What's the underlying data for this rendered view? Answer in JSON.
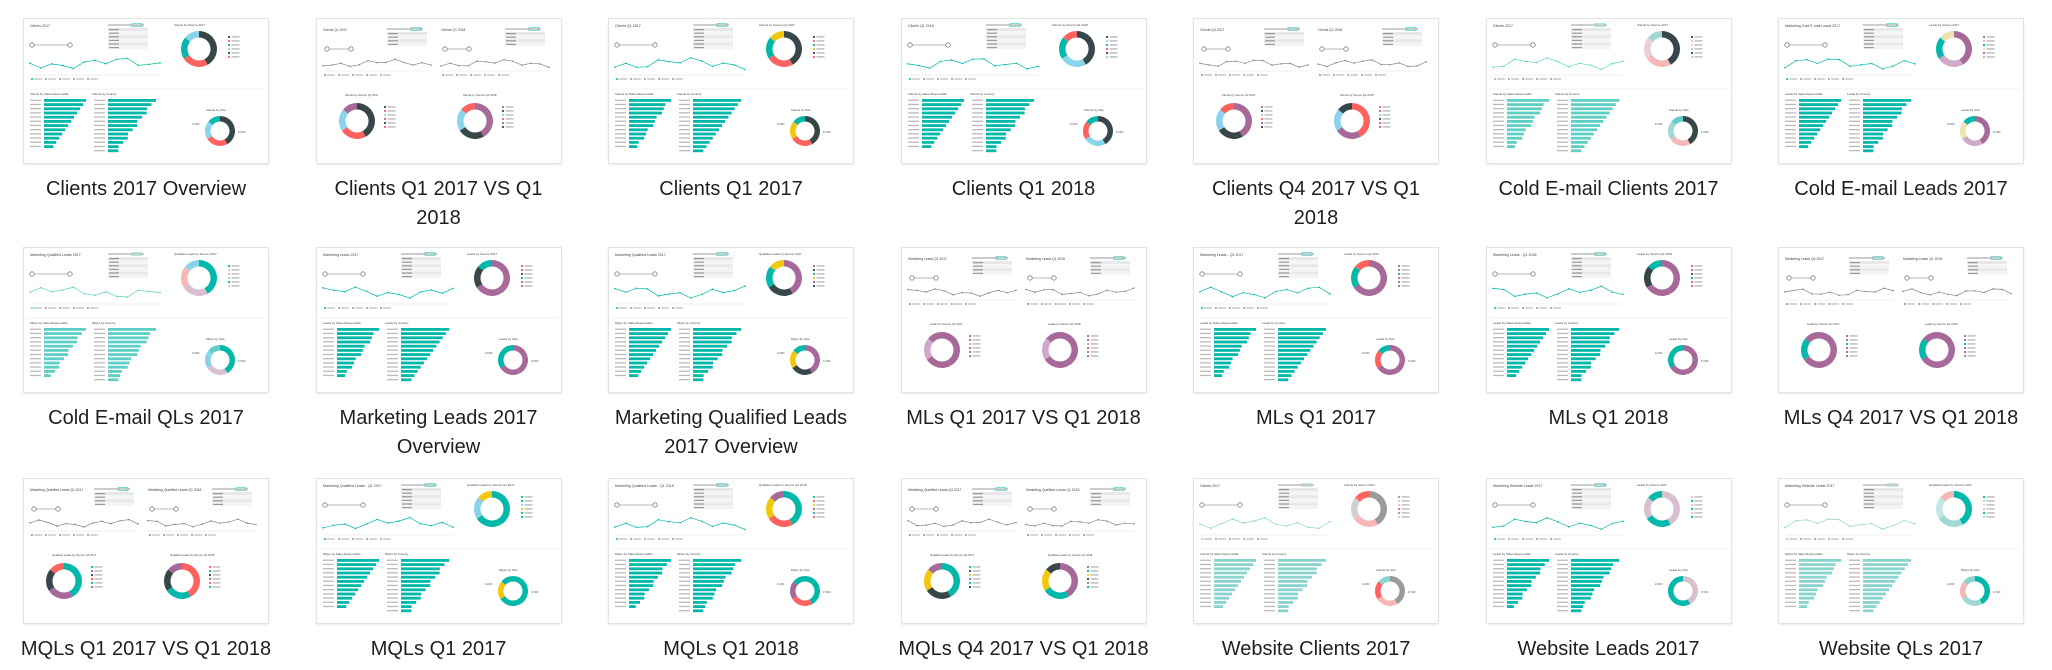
{
  "files": [
    {
      "name": "Clients 2017 Overview",
      "thumb": {
        "layout": "overview",
        "title": "Clients 2017",
        "donut_title": "Clients by Source 2017",
        "bars_title": "Clients by Sales Responsible",
        "bars2_title": "Clients by Country",
        "size_title": "Clients by Size",
        "accent": "#01b8aa",
        "donut_colors": [
          "#374649",
          "#fd625e",
          "#01b8aa",
          "#8ad4eb"
        ]
      }
    },
    {
      "name": "Clients Q1 2017 VS Q1 2018",
      "thumb": {
        "layout": "compare",
        "title": "Clients Q1 2017",
        "title2": "Clients Q1 2018",
        "donut_title": "Clients by Source Q1 2017",
        "donut2_title": "Clients by Source Q1 2018",
        "accent": "#01b8aa",
        "donut_colors": [
          "#374649",
          "#fd625e",
          "#8ad4eb",
          "#a66999"
        ]
      }
    },
    {
      "name": "Clients Q1 2017",
      "thumb": {
        "layout": "overview",
        "title": "Clients Q1 2017",
        "donut_title": "Clients by Source Q1 2017",
        "bars_title": "Clients by Sales Responsible",
        "bars2_title": "Clients by Country",
        "size_title": "Clients by Size",
        "accent": "#01b8aa",
        "donut_colors": [
          "#374649",
          "#fd625e",
          "#01b8aa",
          "#f2c80f"
        ]
      }
    },
    {
      "name": "Clients Q1 2018",
      "thumb": {
        "layout": "overview",
        "title": "Clients Q1 2018",
        "donut_title": "Clients by Source Q1 2018",
        "bars_title": "Clients by Sales Responsible",
        "bars2_title": "Clients by Country",
        "size_title": "Clients by Size",
        "accent": "#01b8aa",
        "donut_colors": [
          "#374649",
          "#8ad4eb",
          "#01b8aa",
          "#fd625e"
        ]
      }
    },
    {
      "name": "Clients Q4 2017 VS Q1 2018",
      "thumb": {
        "layout": "compare",
        "title": "Clients Q4 2017",
        "title2": "Clients Q1 2018",
        "donut_title": "Clients by Source Q4 2017",
        "donut2_title": "Clients by Source Q1 2018",
        "accent": "#01b8aa",
        "donut_colors": [
          "#a66999",
          "#374649",
          "#8ad4eb",
          "#fd625e"
        ]
      }
    },
    {
      "name": "Cold E-mail Clients 2017",
      "thumb": {
        "layout": "overview",
        "title": "Clients 2017",
        "donut_title": "Clients by Source 2017",
        "bars_title": "Clients by Sales Responsible",
        "bars2_title": "Clients by Country",
        "size_title": "Clients by Size",
        "accent": "#5fcfc5",
        "donut_colors": [
          "#374649",
          "#f4b8b7",
          "#e8d0d8",
          "#a0d8d3"
        ]
      }
    },
    {
      "name": "Cold E-mail Leads 2017",
      "thumb": {
        "layout": "overview",
        "title": "Marketing Cold E-mail Leads 2017",
        "donut_title": "Leads by Source 2017",
        "bars_title": "Leads by Sales Responsible",
        "bars2_title": "Leads by Country",
        "size_title": "Leads by Size",
        "accent": "#01b8aa",
        "donut_colors": [
          "#a66999",
          "#d0a8c8",
          "#01b8aa",
          "#ede3b0"
        ]
      }
    },
    {
      "name": "Cold E-mail QLs 2017",
      "thumb": {
        "layout": "overview",
        "title": "Marketing Qualified Leads 2017",
        "donut_title": "Qualified Leads by Source 2017",
        "bars_title": "MQLs by Sales Responsible",
        "bars2_title": "MQLs by Country",
        "size_title": "MQLs by Size",
        "accent": "#5fcfc5",
        "donut_colors": [
          "#01b8aa",
          "#d8c0d0",
          "#f4b8b7",
          "#8ad4eb"
        ]
      }
    },
    {
      "name": "Marketing Leads 2017 Overview",
      "thumb": {
        "layout": "overview",
        "title": "Marketing Leads 2017",
        "donut_title": "Leads by Source 2017",
        "bars_title": "Leads by Sales Responsible",
        "bars2_title": "Leads by Country",
        "size_title": "Leads by Size",
        "accent": "#01b8aa",
        "donut_colors": [
          "#a66999",
          "#a66999",
          "#374649",
          "#01b8aa"
        ]
      }
    },
    {
      "name": "Marketing Qualified Leads 2017 Overview",
      "thumb": {
        "layout": "overview",
        "title": "Marketing Qualified Leads 2017",
        "donut_title": "Qualified Leads by Source 2017",
        "bars_title": "MQLs by Sales Responsible",
        "bars2_title": "MQLs by Country",
        "size_title": "MQLs by Size",
        "accent": "#01b8aa",
        "donut_colors": [
          "#a66999",
          "#374649",
          "#01b8aa",
          "#f2c80f"
        ]
      }
    },
    {
      "name": "MLs Q1 2017 VS Q1 2018",
      "thumb": {
        "layout": "compare",
        "title": "Marketing Leads Q1 2017",
        "title2": "Marketing Leads Q1 2018",
        "donut_title": "Leads by Source Q1 2017",
        "donut2_title": "Leads by Source Q1 2018",
        "accent": "#01b8aa",
        "donut_colors": [
          "#a66999",
          "#a66999",
          "#d0a8c8",
          "#a66999"
        ]
      }
    },
    {
      "name": "MLs Q1 2017",
      "thumb": {
        "layout": "overview",
        "title": "Marketing Leads - Q1 2017",
        "donut_title": "Leads by Source Q1 2017",
        "bars_title": "Leads by Sales Responsible",
        "bars2_title": "Leads by Country",
        "size_title": "Leads by Size",
        "accent": "#01b8aa",
        "donut_colors": [
          "#a66999",
          "#a66999",
          "#01b8aa",
          "#fd625e"
        ]
      }
    },
    {
      "name": "MLs Q1 2018",
      "thumb": {
        "layout": "overview",
        "title": "Marketing Leads - Q1 2018",
        "donut_title": "Leads by Source Q1 2018",
        "bars_title": "Leads by Sales Responsible",
        "bars2_title": "Leads by Country",
        "size_title": "Leads by Size",
        "accent": "#01b8aa",
        "donut_colors": [
          "#a66999",
          "#a66999",
          "#374649",
          "#01b8aa"
        ]
      }
    },
    {
      "name": "MLs Q4 2017 VS Q1 2018",
      "thumb": {
        "layout": "compare",
        "title": "Marketing Leads Q4 2017",
        "title2": "Marketing Leads Q1 2018",
        "donut_title": "Leads by Source Q4 2017",
        "donut2_title": "Leads by Source Q1 2018",
        "accent": "#01b8aa",
        "donut_colors": [
          "#a66999",
          "#a66999",
          "#01b8aa",
          "#a66999"
        ]
      }
    },
    {
      "name": "MQLs Q1 2017 VS Q1 2018",
      "thumb": {
        "layout": "compare",
        "title": "Marketing Qualified Leads Q1 2017",
        "title2": "Marketing Qualified Leads Q1 2018",
        "donut_title": "Qualified Leads by Source Q1 2017",
        "donut2_title": "Qualified Leads by Source Q1 2018",
        "accent": "#01b8aa",
        "donut_colors": [
          "#01b8aa",
          "#a66999",
          "#374649",
          "#fd625e"
        ]
      }
    },
    {
      "name": "MQLs Q1 2017",
      "thumb": {
        "layout": "overview",
        "title": "Marketing Qualified Leads - Q1 2017",
        "donut_title": "Qualified Leads by Source Q1 2017",
        "bars_title": "MQLs by Sales Responsible",
        "bars2_title": "MQLs by Country",
        "size_title": "MQLs by Size",
        "accent": "#01b8aa",
        "donut_colors": [
          "#01b8aa",
          "#01b8aa",
          "#8ad4eb",
          "#f2c80f"
        ]
      }
    },
    {
      "name": "MQLs Q1 2018",
      "thumb": {
        "layout": "overview",
        "title": "Marketing Qualified Leads - Q1 2018",
        "donut_title": "Qualified Leads by Source Q1 2018",
        "bars_title": "MQLs by Sales Responsible",
        "bars2_title": "MQLs by Country",
        "size_title": "MQLs by Size",
        "accent": "#01b8aa",
        "donut_colors": [
          "#01b8aa",
          "#fd625e",
          "#f2c80f",
          "#a66999"
        ]
      }
    },
    {
      "name": "MQLs Q4 2017 VS Q1 2018",
      "thumb": {
        "layout": "compare",
        "title": "Marketing Qualified Leads Q4 2017",
        "title2": "Marketing Qualified Leads Q1 2018",
        "donut_title": "Qualified Leads by Source Q4 2017",
        "donut2_title": "Qualified Leads by Source Q1 2018",
        "accent": "#01b8aa",
        "donut_colors": [
          "#01b8aa",
          "#374649",
          "#f2c80f",
          "#a66999"
        ]
      }
    },
    {
      "name": "Website Clients 2017",
      "thumb": {
        "layout": "overview",
        "title": "Clients 2017",
        "donut_title": "Clients by Source 2017",
        "bars_title": "Clients by Sales Responsible",
        "bars2_title": "Clients by Country",
        "size_title": "Clients by Size",
        "accent": "#8ad4cf",
        "donut_colors": [
          "#9a9a9a",
          "#f4b8b7",
          "#d0d0d0",
          "#fd625e"
        ]
      }
    },
    {
      "name": "Website Leads 2017",
      "thumb": {
        "layout": "overview",
        "title": "Marketing Website Leads 2017",
        "donut_title": "Leads by Source 2017",
        "bars_title": "Leads by Sales Responsible",
        "bars2_title": "Leads by Country",
        "size_title": "Leads by Size",
        "accent": "#01b8aa",
        "donut_colors": [
          "#d8c0d0",
          "#01b8aa",
          "#d8c0d0",
          "#01b8aa"
        ]
      }
    },
    {
      "name": "Website QLs 2017",
      "thumb": {
        "layout": "overview",
        "title": "Marketing Website Leads 2017",
        "donut_title": "Qualified Leads by Source 2017",
        "bars_title": "MQLs by Sales Responsible",
        "bars2_title": "MQLs by Country",
        "size_title": "MQLs by Size",
        "accent": "#8ad4cf",
        "donut_colors": [
          "#01b8aa",
          "#a0d8d3",
          "#c0e8e4",
          "#f4b8b7"
        ]
      }
    }
  ]
}
